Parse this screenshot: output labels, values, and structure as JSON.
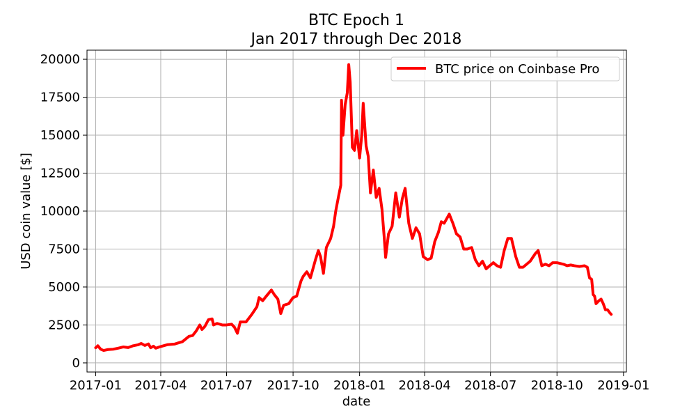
{
  "chart_data": {
    "type": "line",
    "title": "BTC Epoch 1",
    "subtitle": "Jan 2017 through Dec 2018",
    "xlabel": "date",
    "ylabel": "USD coin value [$]",
    "xlim": [
      "2016-12-20",
      "2019-01-05"
    ],
    "ylim": [
      -600,
      20600
    ],
    "grid": true,
    "legend_position": "top-right",
    "x_ticks": [
      "2017-01",
      "2017-04",
      "2017-07",
      "2017-10",
      "2018-01",
      "2018-04",
      "2018-07",
      "2018-10",
      "2019-01"
    ],
    "y_ticks": [
      0,
      2500,
      5000,
      7500,
      10000,
      12500,
      15000,
      17500,
      20000
    ],
    "series": [
      {
        "name": "BTC price on Coinbase Pro",
        "color": "#ff0000",
        "points": [
          [
            "2017-01-01",
            1000
          ],
          [
            "2017-01-04",
            1130
          ],
          [
            "2017-01-08",
            900
          ],
          [
            "2017-01-12",
            820
          ],
          [
            "2017-01-18",
            880
          ],
          [
            "2017-01-25",
            900
          ],
          [
            "2017-02-01",
            970
          ],
          [
            "2017-02-08",
            1050
          ],
          [
            "2017-02-15",
            1010
          ],
          [
            "2017-02-22",
            1130
          ],
          [
            "2017-03-01",
            1200
          ],
          [
            "2017-03-05",
            1280
          ],
          [
            "2017-03-10",
            1150
          ],
          [
            "2017-03-15",
            1250
          ],
          [
            "2017-03-18",
            1000
          ],
          [
            "2017-03-22",
            1100
          ],
          [
            "2017-03-25",
            970
          ],
          [
            "2017-04-01",
            1080
          ],
          [
            "2017-04-10",
            1200
          ],
          [
            "2017-04-20",
            1240
          ],
          [
            "2017-05-01",
            1400
          ],
          [
            "2017-05-10",
            1750
          ],
          [
            "2017-05-15",
            1800
          ],
          [
            "2017-05-20",
            2100
          ],
          [
            "2017-05-25",
            2500
          ],
          [
            "2017-05-28",
            2200
          ],
          [
            "2017-06-01",
            2400
          ],
          [
            "2017-06-06",
            2850
          ],
          [
            "2017-06-11",
            2900
          ],
          [
            "2017-06-13",
            2500
          ],
          [
            "2017-06-18",
            2600
          ],
          [
            "2017-06-25",
            2500
          ],
          [
            "2017-07-01",
            2500
          ],
          [
            "2017-07-08",
            2550
          ],
          [
            "2017-07-12",
            2350
          ],
          [
            "2017-07-16",
            1950
          ],
          [
            "2017-07-20",
            2700
          ],
          [
            "2017-07-28",
            2700
          ],
          [
            "2017-08-05",
            3200
          ],
          [
            "2017-08-12",
            3700
          ],
          [
            "2017-08-15",
            4300
          ],
          [
            "2017-08-20",
            4100
          ],
          [
            "2017-08-25",
            4400
          ],
          [
            "2017-09-01",
            4800
          ],
          [
            "2017-09-05",
            4500
          ],
          [
            "2017-09-10",
            4200
          ],
          [
            "2017-09-14",
            3250
          ],
          [
            "2017-09-18",
            3800
          ],
          [
            "2017-09-25",
            3900
          ],
          [
            "2017-10-01",
            4300
          ],
          [
            "2017-10-06",
            4400
          ],
          [
            "2017-10-12",
            5400
          ],
          [
            "2017-10-15",
            5700
          ],
          [
            "2017-10-20",
            6000
          ],
          [
            "2017-10-25",
            5600
          ],
          [
            "2017-11-01",
            6800
          ],
          [
            "2017-11-05",
            7400
          ],
          [
            "2017-11-08",
            7000
          ],
          [
            "2017-11-12",
            5900
          ],
          [
            "2017-11-16",
            7600
          ],
          [
            "2017-11-22",
            8200
          ],
          [
            "2017-11-26",
            9000
          ],
          [
            "2017-11-29",
            10000
          ],
          [
            "2017-12-03",
            11000
          ],
          [
            "2017-12-06",
            11700
          ],
          [
            "2017-12-07",
            17300
          ],
          [
            "2017-12-09",
            15000
          ],
          [
            "2017-12-12",
            17000
          ],
          [
            "2017-12-15",
            17800
          ],
          [
            "2017-12-17",
            19650
          ],
          [
            "2017-12-19",
            18500
          ],
          [
            "2017-12-22",
            14200
          ],
          [
            "2017-12-25",
            14000
          ],
          [
            "2017-12-28",
            15300
          ],
          [
            "2018-01-01",
            13500
          ],
          [
            "2018-01-04",
            15000
          ],
          [
            "2018-01-06",
            17100
          ],
          [
            "2018-01-10",
            14300
          ],
          [
            "2018-01-13",
            13600
          ],
          [
            "2018-01-16",
            11200
          ],
          [
            "2018-01-20",
            12700
          ],
          [
            "2018-01-24",
            10900
          ],
          [
            "2018-01-28",
            11500
          ],
          [
            "2018-02-01",
            10100
          ],
          [
            "2018-02-04",
            8300
          ],
          [
            "2018-02-06",
            6950
          ],
          [
            "2018-02-10",
            8500
          ],
          [
            "2018-02-15",
            9000
          ],
          [
            "2018-02-20",
            11200
          ],
          [
            "2018-02-25",
            9600
          ],
          [
            "2018-03-01",
            10800
          ],
          [
            "2018-03-05",
            11500
          ],
          [
            "2018-03-10",
            9200
          ],
          [
            "2018-03-15",
            8200
          ],
          [
            "2018-03-20",
            8900
          ],
          [
            "2018-03-25",
            8500
          ],
          [
            "2018-03-30",
            7000
          ],
          [
            "2018-04-05",
            6800
          ],
          [
            "2018-04-10",
            6900
          ],
          [
            "2018-04-15",
            8000
          ],
          [
            "2018-04-20",
            8600
          ],
          [
            "2018-04-24",
            9300
          ],
          [
            "2018-04-28",
            9200
          ],
          [
            "2018-05-05",
            9800
          ],
          [
            "2018-05-10",
            9200
          ],
          [
            "2018-05-15",
            8500
          ],
          [
            "2018-05-20",
            8300
          ],
          [
            "2018-05-25",
            7500
          ],
          [
            "2018-05-30",
            7500
          ],
          [
            "2018-06-05",
            7600
          ],
          [
            "2018-06-10",
            6800
          ],
          [
            "2018-06-15",
            6400
          ],
          [
            "2018-06-20",
            6700
          ],
          [
            "2018-06-25",
            6200
          ],
          [
            "2018-06-30",
            6400
          ],
          [
            "2018-07-05",
            6600
          ],
          [
            "2018-07-10",
            6400
          ],
          [
            "2018-07-15",
            6300
          ],
          [
            "2018-07-20",
            7400
          ],
          [
            "2018-07-25",
            8200
          ],
          [
            "2018-07-30",
            8200
          ],
          [
            "2018-08-05",
            7000
          ],
          [
            "2018-08-10",
            6300
          ],
          [
            "2018-08-15",
            6300
          ],
          [
            "2018-08-20",
            6500
          ],
          [
            "2018-08-25",
            6700
          ],
          [
            "2018-09-01",
            7200
          ],
          [
            "2018-09-05",
            7400
          ],
          [
            "2018-09-10",
            6400
          ],
          [
            "2018-09-15",
            6500
          ],
          [
            "2018-09-20",
            6400
          ],
          [
            "2018-09-25",
            6600
          ],
          [
            "2018-10-01",
            6600
          ],
          [
            "2018-10-10",
            6500
          ],
          [
            "2018-10-15",
            6400
          ],
          [
            "2018-10-20",
            6450
          ],
          [
            "2018-10-25",
            6400
          ],
          [
            "2018-11-01",
            6350
          ],
          [
            "2018-11-08",
            6400
          ],
          [
            "2018-11-12",
            6300
          ],
          [
            "2018-11-15",
            5600
          ],
          [
            "2018-11-18",
            5500
          ],
          [
            "2018-11-20",
            4500
          ],
          [
            "2018-11-22",
            4400
          ],
          [
            "2018-11-24",
            3900
          ],
          [
            "2018-11-26",
            4000
          ],
          [
            "2018-11-28",
            4100
          ],
          [
            "2018-12-01",
            4200
          ],
          [
            "2018-12-04",
            3900
          ],
          [
            "2018-12-07",
            3500
          ],
          [
            "2018-12-10",
            3500
          ],
          [
            "2018-12-13",
            3300
          ],
          [
            "2018-12-15",
            3200
          ]
        ]
      }
    ]
  }
}
